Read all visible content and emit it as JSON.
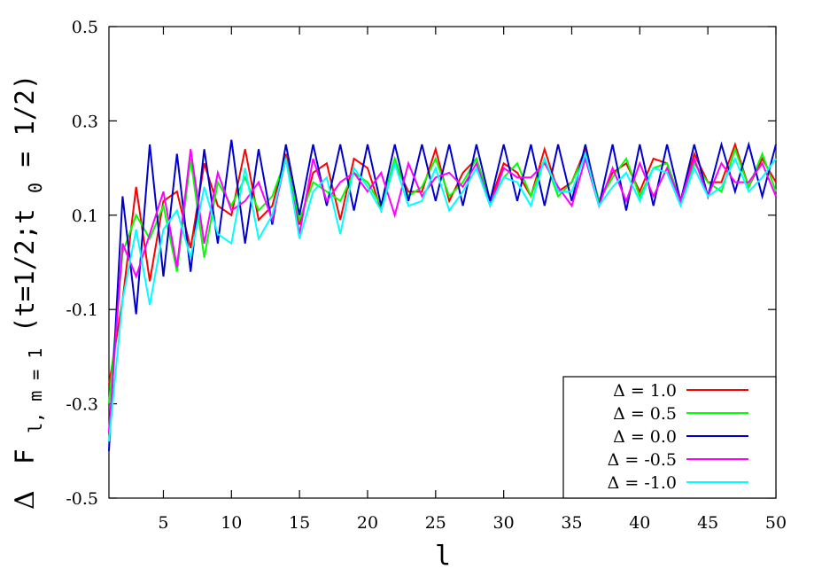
{
  "chart_data": {
    "type": "line",
    "title": "",
    "xlabel": "l",
    "ylabel": {
      "delta": "Δ",
      "main": "F",
      "sub": "l, m = 1",
      "args_open": "(t=1/2;t",
      "args_sub": "0",
      "args_close": " = 1/2)"
    },
    "xlim": [
      1,
      50
    ],
    "ylim": [
      -0.5,
      0.5
    ],
    "x_ticks": [
      5,
      10,
      15,
      20,
      25,
      30,
      35,
      40,
      45,
      50
    ],
    "x_tick_labels": [
      "5",
      "10",
      "15",
      "20",
      "25",
      "30",
      "35",
      "40",
      "45",
      "50"
    ],
    "y_ticks": [
      -0.5,
      -0.3,
      -0.1,
      0.1,
      0.3,
      0.5
    ],
    "y_tick_labels": [
      "-0.5",
      "-0.3",
      "-0.1",
      "0.1",
      "0.3",
      "0.5"
    ],
    "grid": false,
    "legend_position": "bottom-right",
    "x": [
      1,
      2,
      3,
      4,
      5,
      6,
      7,
      8,
      9,
      10,
      11,
      12,
      13,
      14,
      15,
      16,
      17,
      18,
      19,
      20,
      21,
      22,
      23,
      24,
      25,
      26,
      27,
      28,
      29,
      30,
      31,
      32,
      33,
      34,
      35,
      36,
      37,
      38,
      39,
      40,
      41,
      42,
      43,
      44,
      45,
      46,
      47,
      48,
      49,
      50
    ],
    "series": [
      {
        "name": "Δ = 1.0",
        "color": "#ff0000",
        "values": [
          -0.26,
          -0.08,
          0.16,
          -0.04,
          0.13,
          0.15,
          0.03,
          0.21,
          0.12,
          0.1,
          0.24,
          0.09,
          0.12,
          0.23,
          0.08,
          0.19,
          0.21,
          0.09,
          0.22,
          0.2,
          0.11,
          0.21,
          0.15,
          0.15,
          0.24,
          0.13,
          0.19,
          0.22,
          0.13,
          0.21,
          0.19,
          0.14,
          0.24,
          0.15,
          0.17,
          0.24,
          0.13,
          0.19,
          0.21,
          0.15,
          0.22,
          0.21,
          0.13,
          0.23,
          0.17,
          0.17,
          0.25,
          0.16,
          0.22,
          0.17
        ]
      },
      {
        "name": "Δ = 0.5",
        "color": "#00ff00",
        "values": [
          -0.3,
          0.02,
          0.1,
          0.05,
          0.12,
          -0.02,
          0.22,
          0.01,
          0.17,
          0.12,
          0.18,
          0.11,
          0.14,
          0.22,
          0.09,
          0.17,
          0.15,
          0.13,
          0.19,
          0.17,
          0.12,
          0.22,
          0.14,
          0.16,
          0.22,
          0.14,
          0.17,
          0.22,
          0.13,
          0.18,
          0.21,
          0.14,
          0.22,
          0.14,
          0.17,
          0.23,
          0.13,
          0.18,
          0.22,
          0.14,
          0.2,
          0.21,
          0.13,
          0.21,
          0.17,
          0.15,
          0.24,
          0.16,
          0.23,
          0.15
        ]
      },
      {
        "name": "Δ = 0.0",
        "color": "#0000cc",
        "values": [
          -0.4,
          0.14,
          -0.11,
          0.25,
          -0.03,
          0.23,
          -0.02,
          0.24,
          0.04,
          0.26,
          0.04,
          0.24,
          0.08,
          0.25,
          0.1,
          0.25,
          0.12,
          0.25,
          0.11,
          0.25,
          0.12,
          0.25,
          0.13,
          0.25,
          0.13,
          0.25,
          0.12,
          0.25,
          0.13,
          0.25,
          0.13,
          0.25,
          0.12,
          0.25,
          0.13,
          0.25,
          0.12,
          0.25,
          0.11,
          0.25,
          0.12,
          0.25,
          0.13,
          0.25,
          0.14,
          0.25,
          0.15,
          0.25,
          0.14,
          0.25
        ]
      },
      {
        "name": "Δ = -0.5",
        "color": "#ff00ff",
        "values": [
          -0.36,
          0.04,
          -0.03,
          0.06,
          0.15,
          -0.01,
          0.24,
          0.04,
          0.19,
          0.11,
          0.13,
          0.17,
          0.09,
          0.22,
          0.06,
          0.22,
          0.13,
          0.17,
          0.19,
          0.15,
          0.19,
          0.1,
          0.21,
          0.14,
          0.18,
          0.19,
          0.16,
          0.21,
          0.12,
          0.2,
          0.18,
          0.18,
          0.21,
          0.16,
          0.12,
          0.22,
          0.12,
          0.2,
          0.13,
          0.21,
          0.14,
          0.2,
          0.13,
          0.22,
          0.14,
          0.21,
          0.17,
          0.17,
          0.21,
          0.14
        ]
      },
      {
        "name": "Δ = -1.0",
        "color": "#00ffff",
        "values": [
          -0.38,
          -0.08,
          0.07,
          -0.09,
          0.07,
          0.11,
          0.01,
          0.16,
          0.06,
          0.04,
          0.2,
          0.05,
          0.1,
          0.22,
          0.05,
          0.15,
          0.18,
          0.06,
          0.2,
          0.16,
          0.11,
          0.21,
          0.12,
          0.13,
          0.2,
          0.11,
          0.15,
          0.2,
          0.12,
          0.18,
          0.17,
          0.12,
          0.22,
          0.15,
          0.15,
          0.23,
          0.12,
          0.16,
          0.19,
          0.13,
          0.2,
          0.19,
          0.12,
          0.2,
          0.14,
          0.16,
          0.22,
          0.15,
          0.18,
          0.22
        ]
      }
    ]
  }
}
